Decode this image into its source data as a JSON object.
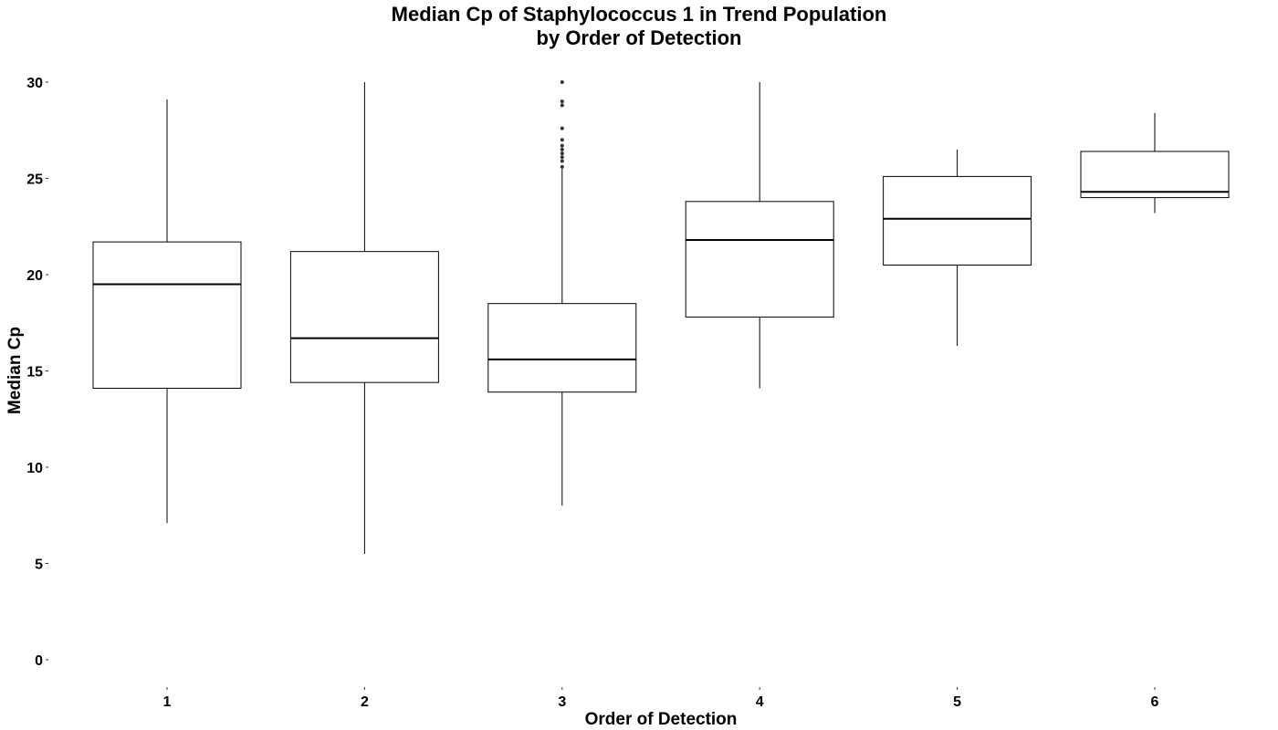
{
  "chart_data": {
    "type": "box",
    "title": [
      "Median Cp of Staphylococcus 1 in Trend Population",
      "by Order of Detection"
    ],
    "xlabel": "Order of Detection",
    "ylabel": "Median Cp",
    "ylim": [
      0,
      30
    ],
    "yticks": [
      "0",
      "5",
      "10",
      "15",
      "20",
      "25",
      "30"
    ],
    "categories": [
      "1",
      "2",
      "3",
      "4",
      "5",
      "6"
    ],
    "boxes": [
      {
        "category": "1",
        "whisker_low": 7.1,
        "q1": 14.1,
        "median": 19.5,
        "q3": 21.7,
        "whisker_high": 29.1,
        "outliers": []
      },
      {
        "category": "2",
        "whisker_low": 5.5,
        "q1": 14.4,
        "median": 16.7,
        "q3": 21.2,
        "whisker_high": 30.0,
        "outliers": []
      },
      {
        "category": "3",
        "whisker_low": 8.0,
        "q1": 13.9,
        "median": 15.6,
        "q3": 18.5,
        "whisker_high": 25.5,
        "outliers": [
          25.6,
          25.9,
          26.1,
          26.3,
          26.5,
          26.7,
          27.0,
          27.6,
          28.8,
          29.0,
          30.0
        ]
      },
      {
        "category": "4",
        "whisker_low": 14.1,
        "q1": 17.8,
        "median": 21.8,
        "q3": 23.8,
        "whisker_high": 30.0,
        "outliers": []
      },
      {
        "category": "5",
        "whisker_low": 16.3,
        "q1": 20.5,
        "median": 22.9,
        "q3": 25.1,
        "whisker_high": 26.5,
        "outliers": []
      },
      {
        "category": "6",
        "whisker_low": 23.2,
        "q1": 24.0,
        "median": 24.3,
        "q3": 26.4,
        "whisker_high": 28.4,
        "outliers": []
      }
    ],
    "grid": false,
    "legend": "none"
  }
}
